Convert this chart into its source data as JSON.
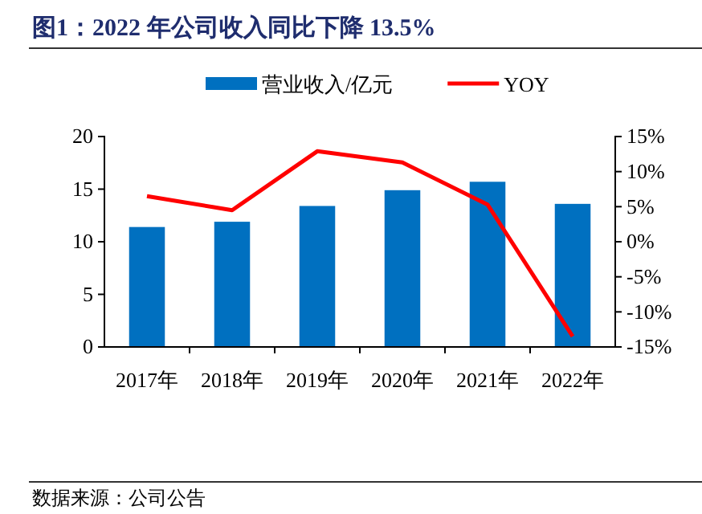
{
  "chart_data": {
    "type": "bar",
    "title": "图1：2022 年公司收入同比下降 13.5%",
    "categories": [
      "2017年",
      "2018年",
      "2019年",
      "2020年",
      "2021年",
      "2022年"
    ],
    "series": [
      {
        "name": "营业收入/亿元",
        "color": "#0070c0",
        "values": [
          11.4,
          11.9,
          13.4,
          14.9,
          15.7,
          13.6
        ]
      },
      {
        "name": "YOY",
        "type": "line",
        "axis": "y2",
        "color": "#ff0000",
        "values": [
          6.5,
          4.5,
          12.9,
          11.3,
          5.3,
          -13.5
        ]
      }
    ],
    "ylim": [
      0,
      20
    ],
    "yticks": [
      0,
      5,
      10,
      15,
      20
    ],
    "y2lim": [
      -15,
      15
    ],
    "y2ticks": [
      {
        "value": 15,
        "label": "15%"
      },
      {
        "value": 10,
        "label": "10%"
      },
      {
        "value": 5,
        "label": "5%"
      },
      {
        "value": 0,
        "label": "0%"
      },
      {
        "value": -5,
        "label": "-5%"
      },
      {
        "value": -10,
        "label": "-10%"
      },
      {
        "value": -15,
        "label": "-15%"
      }
    ],
    "legend": "top",
    "marker": "none",
    "grid": false,
    "annotations": [
      "数据来源：公司公告"
    ]
  }
}
